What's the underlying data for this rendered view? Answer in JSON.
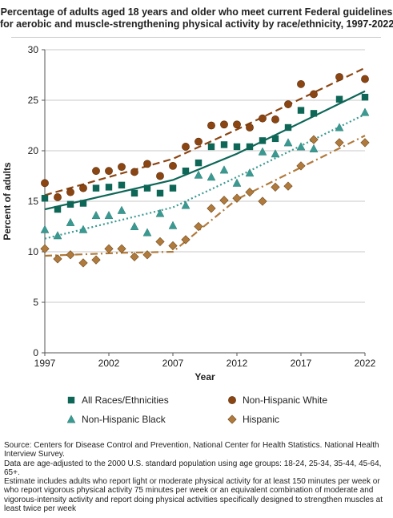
{
  "title_lines": [
    "Percentage of adults aged 18 years and older who meet current Federal guidelines",
    "for aerobic and muscle-strengthening physical activity by race/ethnicity, 1997-2022"
  ],
  "notes": [
    "Source: Centers for Disease Control and Prevention, National Center for Health Statistics. National Health Interview Survey.",
    "Data are age-adjusted to the 2000 U.S. standard population using age groups: 18-24, 25-34, 35-44, 45-64, 65+.",
    "Estimate includes adults who report light or moderate physical activity for at least 150 minutes per week or who report vigorous physical activity 75 minutes per week or an equivalent combination of moderate and vigorous-intensity activity and report doing physical activities specifically designed to strengthen muscles at least twice per week"
  ],
  "chart_data": {
    "type": "scatter",
    "title": "Percentage of adults aged 18 years and older who meet current Federal guidelines for aerobic and muscle-strengthening physical activity by race/ethnicity, 1997-2022",
    "xlabel": "Year",
    "ylabel": "Percent of adults",
    "xlim": [
      1997,
      2022
    ],
    "ylim": [
      0,
      30
    ],
    "xticks": [
      1997,
      2002,
      2007,
      2012,
      2017,
      2022
    ],
    "yticks": [
      0,
      5,
      10,
      15,
      20,
      25,
      30
    ],
    "grid": "horizontal",
    "legend_position": "bottom",
    "series": [
      {
        "name": "All Races/Ethnicities",
        "marker": "square",
        "color": "#0e6657",
        "line_style": "solid",
        "points": [
          [
            1997,
            15.3
          ],
          [
            1998,
            14.2
          ],
          [
            1999,
            14.7
          ],
          [
            2000,
            14.8
          ],
          [
            2001,
            16.3
          ],
          [
            2002,
            16.4
          ],
          [
            2003,
            16.6
          ],
          [
            2004,
            15.8
          ],
          [
            2005,
            16.3
          ],
          [
            2006,
            15.8
          ],
          [
            2007,
            16.3
          ],
          [
            2008,
            18.0
          ],
          [
            2009,
            18.8
          ],
          [
            2010,
            20.4
          ],
          [
            2011,
            20.6
          ],
          [
            2012,
            20.4
          ],
          [
            2013,
            20.4
          ],
          [
            2014,
            21.0
          ],
          [
            2015,
            21.2
          ],
          [
            2016,
            22.3
          ],
          [
            2017,
            24.0
          ],
          [
            2018,
            23.7
          ],
          [
            2020,
            25.1
          ],
          [
            2022,
            25.3
          ]
        ],
        "trend": [
          [
            1997,
            14.2
          ],
          [
            2007,
            17.1
          ],
          [
            2012,
            19.7
          ],
          [
            2022,
            25.9
          ]
        ]
      },
      {
        "name": "Non-Hispanic White",
        "marker": "circle",
        "color": "#8b4513",
        "line_style": "dashed",
        "points": [
          [
            1997,
            16.8
          ],
          [
            1998,
            15.4
          ],
          [
            1999,
            15.9
          ],
          [
            2000,
            16.3
          ],
          [
            2001,
            18.0
          ],
          [
            2002,
            18.0
          ],
          [
            2003,
            18.4
          ],
          [
            2004,
            17.9
          ],
          [
            2005,
            18.7
          ],
          [
            2006,
            17.5
          ],
          [
            2007,
            18.5
          ],
          [
            2008,
            20.4
          ],
          [
            2009,
            20.9
          ],
          [
            2010,
            22.5
          ],
          [
            2011,
            22.6
          ],
          [
            2012,
            22.6
          ],
          [
            2013,
            22.3
          ],
          [
            2014,
            23.2
          ],
          [
            2015,
            23.1
          ],
          [
            2016,
            24.6
          ],
          [
            2017,
            26.6
          ],
          [
            2018,
            25.6
          ],
          [
            2020,
            27.3
          ],
          [
            2022,
            27.1
          ]
        ],
        "trend": [
          [
            1997,
            15.6
          ],
          [
            2007,
            19.2
          ],
          [
            2012,
            22.1
          ],
          [
            2022,
            28.2
          ]
        ]
      },
      {
        "name": "Non-Hispanic Black",
        "marker": "triangle",
        "color": "#3a9a92",
        "line_style": "dotted",
        "points": [
          [
            1997,
            12.2
          ],
          [
            1998,
            11.6
          ],
          [
            1999,
            12.9
          ],
          [
            2000,
            12.2
          ],
          [
            2001,
            13.6
          ],
          [
            2002,
            13.6
          ],
          [
            2003,
            14.1
          ],
          [
            2004,
            12.5
          ],
          [
            2005,
            11.9
          ],
          [
            2006,
            13.8
          ],
          [
            2007,
            12.6
          ],
          [
            2008,
            14.6
          ],
          [
            2009,
            17.6
          ],
          [
            2010,
            17.4
          ],
          [
            2011,
            18.1
          ],
          [
            2012,
            16.8
          ],
          [
            2013,
            17.8
          ],
          [
            2014,
            19.9
          ],
          [
            2015,
            19.7
          ],
          [
            2016,
            20.8
          ],
          [
            2017,
            20.4
          ],
          [
            2018,
            20.2
          ],
          [
            2020,
            22.3
          ],
          [
            2022,
            23.8
          ]
        ],
        "trend": [
          [
            1997,
            11.3
          ],
          [
            2007,
            14.4
          ],
          [
            2012,
            17.4
          ],
          [
            2022,
            23.6
          ]
        ]
      },
      {
        "name": "Hispanic",
        "marker": "diamond",
        "color": "#b07a3c",
        "line_style": "dashdot",
        "points": [
          [
            1997,
            10.3
          ],
          [
            1998,
            9.3
          ],
          [
            1999,
            9.7
          ],
          [
            2000,
            8.9
          ],
          [
            2001,
            9.2
          ],
          [
            2002,
            10.3
          ],
          [
            2003,
            10.3
          ],
          [
            2004,
            9.5
          ],
          [
            2005,
            9.7
          ],
          [
            2006,
            11.0
          ],
          [
            2007,
            10.6
          ],
          [
            2008,
            11.2
          ],
          [
            2009,
            12.5
          ],
          [
            2010,
            14.3
          ],
          [
            2011,
            15.1
          ],
          [
            2012,
            15.3
          ],
          [
            2013,
            15.9
          ],
          [
            2014,
            15.0
          ],
          [
            2015,
            16.4
          ],
          [
            2016,
            16.5
          ],
          [
            2017,
            18.5
          ],
          [
            2018,
            21.1
          ],
          [
            2020,
            20.8
          ],
          [
            2022,
            20.8
          ]
        ],
        "trend": [
          [
            1997,
            9.6
          ],
          [
            2003,
            9.9
          ],
          [
            2007,
            10.0
          ],
          [
            2012,
            15.2
          ],
          [
            2022,
            21.5
          ]
        ]
      }
    ]
  }
}
